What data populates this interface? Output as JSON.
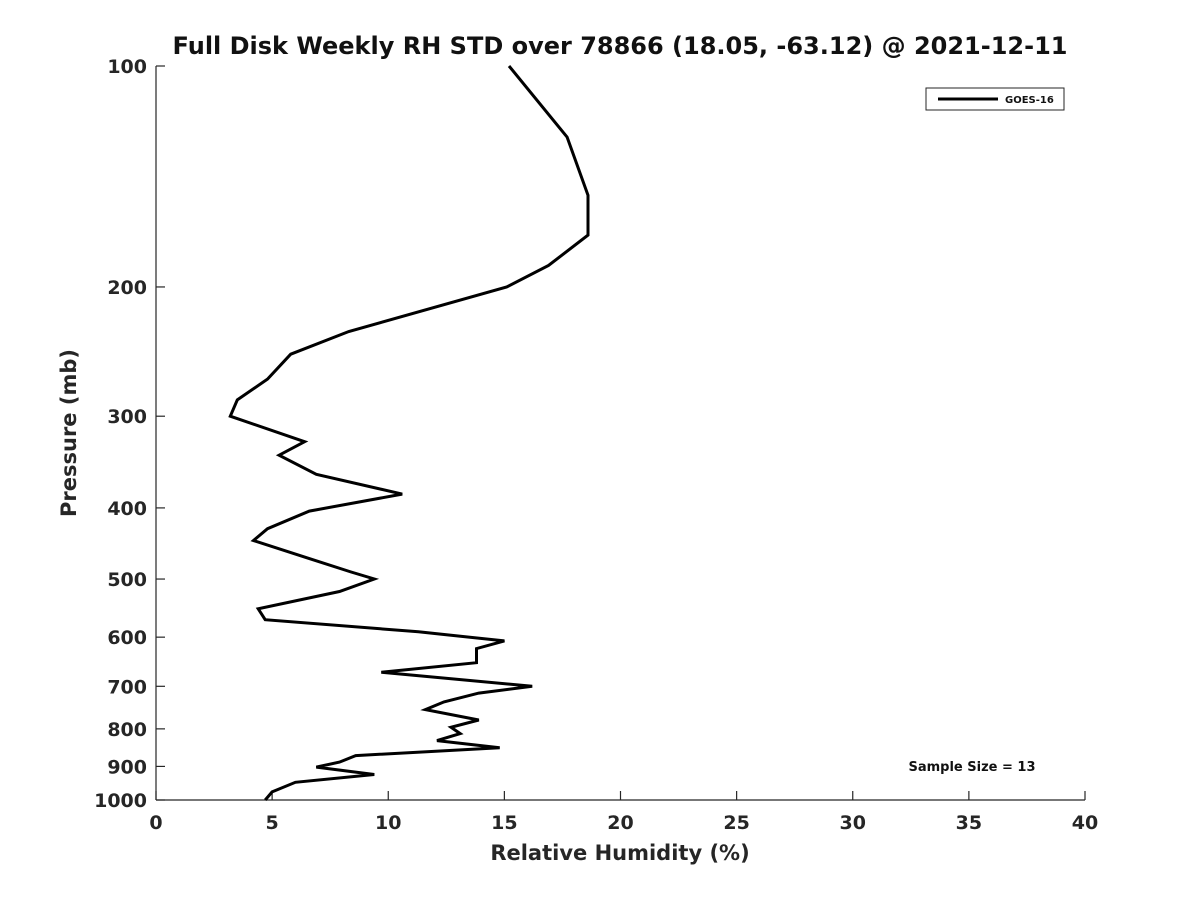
{
  "chart_data": {
    "type": "line",
    "title": "Full Disk Weekly RH STD over 78866 (18.05, -63.12) @ 2021-12-11",
    "xlabel": "Relative Humidity (%)",
    "ylabel": "Pressure (mb)",
    "xlim": [
      0,
      40
    ],
    "ylim": [
      1000,
      100
    ],
    "yscale": "log",
    "yreversed": true,
    "grid": false,
    "legend_position": "top-right",
    "x_ticks": [
      0,
      5,
      10,
      15,
      20,
      25,
      30,
      35,
      40
    ],
    "y_ticks": [
      100,
      200,
      300,
      400,
      500,
      600,
      700,
      800,
      900,
      1000
    ],
    "annotation": "Sample Size = 13",
    "series": [
      {
        "name": "GOES-16",
        "color": "#000000",
        "points": [
          [
            15.2,
            100
          ],
          [
            17.7,
            125
          ],
          [
            18.6,
            150
          ],
          [
            18.6,
            170
          ],
          [
            16.9,
            187
          ],
          [
            15.1,
            200
          ],
          [
            8.3,
            230
          ],
          [
            5.8,
            247
          ],
          [
            4.8,
            267
          ],
          [
            3.5,
            285
          ],
          [
            3.2,
            300
          ],
          [
            6.4,
            325
          ],
          [
            5.3,
            339
          ],
          [
            6.9,
            360
          ],
          [
            10.6,
            383
          ],
          [
            6.6,
            404
          ],
          [
            4.8,
            427
          ],
          [
            4.2,
            443
          ],
          [
            6.6,
            469
          ],
          [
            8.4,
            489
          ],
          [
            9.4,
            500
          ],
          [
            7.9,
            520
          ],
          [
            4.4,
            549
          ],
          [
            4.7,
            568
          ],
          [
            11.3,
            590
          ],
          [
            15.0,
            607
          ],
          [
            13.8,
            622
          ],
          [
            13.8,
            650
          ],
          [
            9.7,
            670
          ],
          [
            16.2,
            700
          ],
          [
            13.9,
            715
          ],
          [
            12.4,
            735
          ],
          [
            11.6,
            753
          ],
          [
            13.9,
            778
          ],
          [
            12.7,
            796
          ],
          [
            13.1,
            812
          ],
          [
            12.1,
            830
          ],
          [
            14.8,
            849
          ],
          [
            8.6,
            870
          ],
          [
            7.9,
            888
          ],
          [
            6.9,
            902
          ],
          [
            9.4,
            923
          ],
          [
            6.0,
            946
          ],
          [
            5.0,
            975
          ],
          [
            4.7,
            1000
          ]
        ]
      }
    ]
  }
}
